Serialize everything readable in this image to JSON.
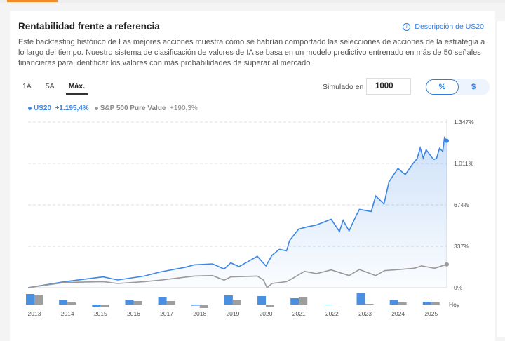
{
  "header": {
    "title": "Rentabilidad frente a referencia",
    "description_link": "Descripción de US20",
    "info_icon": "info-circle-icon"
  },
  "description": "Este backtesting histórico de Las mejores acciones muestra cómo se habrían comportado las selecciones de acciones de la estrategia a lo largo del tiempo. Nuestro sistema de clasificación de valores de IA se basa en un modelo predictivo entrenado en más de 50 señales financieras para identificar los valores con más probabilidades de superar al mercado.",
  "controls": {
    "ranges": [
      "1A",
      "5A",
      "Máx."
    ],
    "active_range": "Máx.",
    "simulated_label": "Simulado en",
    "simulated_value": "1000",
    "units": [
      "%",
      "$"
    ],
    "active_unit": "%"
  },
  "legend": [
    {
      "name": "US20",
      "value": "+1.195,4%",
      "color": "#3b86e6"
    },
    {
      "name": "S&P 500 Pure Value",
      "value": "+190,3%",
      "color": "#999999"
    }
  ],
  "chart_data": {
    "type": "line",
    "ylabel_ticks": [
      "0%",
      "337%",
      "674%",
      "1.011%",
      "1.347%"
    ],
    "ylim": [
      0,
      1347
    ],
    "xlim": [
      2013.0,
      2025.6
    ],
    "grid": true,
    "series": [
      {
        "name": "US20",
        "color": "#3b86e6",
        "points": [
          [
            2013.0,
            0
          ],
          [
            2014.1,
            49
          ],
          [
            2015.26,
            88
          ],
          [
            2015.7,
            63
          ],
          [
            2016.5,
            95
          ],
          [
            2016.95,
            126
          ],
          [
            2017.75,
            167
          ],
          [
            2018.0,
            186
          ],
          [
            2018.55,
            194
          ],
          [
            2018.9,
            152
          ],
          [
            2019.1,
            202
          ],
          [
            2019.35,
            171
          ],
          [
            2019.55,
            202
          ],
          [
            2019.9,
            255
          ],
          [
            2020.16,
            177
          ],
          [
            2020.34,
            263
          ],
          [
            2020.56,
            312
          ],
          [
            2020.78,
            300
          ],
          [
            2020.87,
            384
          ],
          [
            2021.14,
            476
          ],
          [
            2021.4,
            495
          ],
          [
            2021.68,
            510
          ],
          [
            2022.12,
            557
          ],
          [
            2022.37,
            457
          ],
          [
            2022.48,
            548
          ],
          [
            2022.66,
            462
          ],
          [
            2022.84,
            567
          ],
          [
            2022.97,
            637
          ],
          [
            2023.33,
            620
          ],
          [
            2023.46,
            746
          ],
          [
            2023.71,
            681
          ],
          [
            2023.86,
            862
          ],
          [
            2024.13,
            970
          ],
          [
            2024.35,
            919
          ],
          [
            2024.57,
            1005
          ],
          [
            2024.71,
            1050
          ],
          [
            2024.8,
            1138
          ],
          [
            2024.89,
            1054
          ],
          [
            2024.98,
            1122
          ],
          [
            2025.2,
            1043
          ],
          [
            2025.29,
            1050
          ],
          [
            2025.38,
            1134
          ],
          [
            2025.48,
            1109
          ],
          [
            2025.53,
            1221
          ],
          [
            2025.6,
            1195
          ]
        ]
      },
      {
        "name": "S&P 500 Pure Value",
        "color": "#999999",
        "points": [
          [
            2013.0,
            0
          ],
          [
            2014.1,
            42
          ],
          [
            2015.26,
            49
          ],
          [
            2015.7,
            34
          ],
          [
            2016.5,
            49
          ],
          [
            2017.03,
            63
          ],
          [
            2018.0,
            95
          ],
          [
            2018.55,
            99
          ],
          [
            2018.9,
            61
          ],
          [
            2019.1,
            88
          ],
          [
            2019.9,
            95
          ],
          [
            2020.08,
            63
          ],
          [
            2020.19,
            0
          ],
          [
            2020.34,
            34
          ],
          [
            2020.78,
            49
          ],
          [
            2020.96,
            76
          ],
          [
            2021.32,
            133
          ],
          [
            2021.68,
            114
          ],
          [
            2022.12,
            145
          ],
          [
            2022.66,
            99
          ],
          [
            2022.97,
            148
          ],
          [
            2023.46,
            99
          ],
          [
            2023.73,
            139
          ],
          [
            2024.17,
            148
          ],
          [
            2024.62,
            158
          ],
          [
            2024.84,
            177
          ],
          [
            2025.24,
            158
          ],
          [
            2025.6,
            190
          ]
        ]
      }
    ],
    "annual_bars": {
      "years": [
        "2013",
        "2014",
        "2015",
        "2016",
        "2017",
        "2018",
        "2019",
        "2020",
        "2021",
        "2022",
        "2023",
        "2024",
        "2025"
      ],
      "end_label": "Hoy",
      "US20": [
        75,
        35,
        -15,
        35,
        50,
        -8,
        65,
        60,
        45,
        -3,
        80,
        30,
        20
      ],
      "S&P 500 Pure Value": [
        70,
        15,
        -20,
        25,
        25,
        -25,
        35,
        -20,
        50,
        -3,
        5,
        15,
        15
      ]
    }
  }
}
